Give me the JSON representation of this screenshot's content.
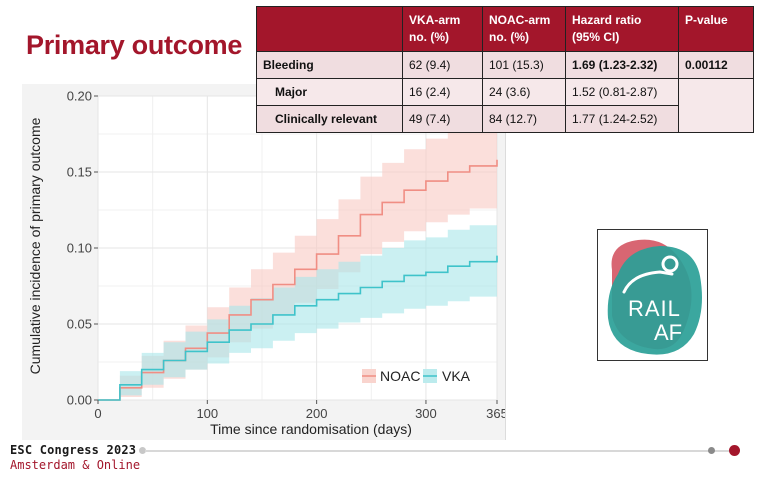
{
  "slide": {
    "title": "Primary outcome",
    "footer": {
      "congress": "ESC Congress 2023",
      "location": "Amsterdam & Online"
    },
    "logo_text": "RAIL AF",
    "colors": {
      "brand": "#a3162b",
      "noac": "#f4a9a0",
      "vka": "#5fd0d6"
    }
  },
  "table": {
    "headers": [
      {
        "line1": "",
        "line2": ""
      },
      {
        "line1": "VKA-arm",
        "line2": "no. (%)"
      },
      {
        "line1": "NOAC-arm",
        "line2": "no. (%)"
      },
      {
        "line1": "Hazard ratio",
        "line2": "(95% CI)"
      },
      {
        "line1": "P-value",
        "line2": ""
      }
    ],
    "rows": [
      {
        "label": "Bleeding",
        "vka": "62 (9.4)",
        "noac": "101 (15.3)",
        "hr": "1.69 (1.23-2.32)",
        "p": "0.00112"
      },
      {
        "label": "Major",
        "vka": "16 (2.4)",
        "noac": "24 (3.6)",
        "hr": "1.52 (0.81-2.87)",
        "p": ""
      },
      {
        "label": "Clinically relevant",
        "vka": "49 (7.4)",
        "noac": "84 (12.7)",
        "hr": "1.77 (1.24-2.52)",
        "p": ""
      }
    ]
  },
  "chart_data": {
    "type": "line",
    "title": "",
    "xlabel": "Time since randomisation (days)",
    "ylabel": "Cumulative incidence of primary outcome",
    "xlim": [
      0,
      365
    ],
    "ylim": [
      0,
      0.2
    ],
    "x_ticks": [
      0,
      100,
      200,
      300,
      365
    ],
    "y_ticks": [
      0.0,
      0.05,
      0.1,
      0.15,
      0.2
    ],
    "y_tick_labels": [
      "0.00",
      "0.05",
      "0.10",
      "0.15",
      "0.20"
    ],
    "grid": true,
    "legend_position": "bottom-right",
    "series": [
      {
        "name": "NOAC",
        "color": "#f4a9a0",
        "x": [
          0,
          20,
          40,
          60,
          80,
          100,
          120,
          140,
          160,
          180,
          200,
          220,
          240,
          260,
          280,
          300,
          320,
          340,
          365
        ],
        "y": [
          0.0,
          0.008,
          0.018,
          0.026,
          0.034,
          0.044,
          0.056,
          0.066,
          0.076,
          0.086,
          0.096,
          0.108,
          0.122,
          0.13,
          0.138,
          0.144,
          0.15,
          0.154,
          0.158
        ],
        "lower": [
          0.0,
          0.002,
          0.008,
          0.014,
          0.02,
          0.028,
          0.038,
          0.047,
          0.056,
          0.064,
          0.073,
          0.084,
          0.096,
          0.104,
          0.111,
          0.117,
          0.122,
          0.126,
          0.13
        ],
        "upper": [
          0.0,
          0.016,
          0.029,
          0.039,
          0.049,
          0.061,
          0.074,
          0.086,
          0.097,
          0.108,
          0.119,
          0.132,
          0.147,
          0.156,
          0.165,
          0.172,
          0.178,
          0.183,
          0.187
        ]
      },
      {
        "name": "VKA",
        "color": "#5fd0d6",
        "x": [
          0,
          20,
          40,
          60,
          80,
          100,
          120,
          140,
          160,
          180,
          200,
          220,
          240,
          260,
          280,
          300,
          320,
          340,
          365
        ],
        "y": [
          0.0,
          0.01,
          0.02,
          0.026,
          0.032,
          0.038,
          0.046,
          0.05,
          0.056,
          0.062,
          0.066,
          0.07,
          0.074,
          0.078,
          0.082,
          0.084,
          0.088,
          0.091,
          0.095
        ],
        "lower": [
          0.0,
          0.003,
          0.01,
          0.015,
          0.02,
          0.024,
          0.031,
          0.034,
          0.039,
          0.044,
          0.047,
          0.051,
          0.054,
          0.057,
          0.06,
          0.062,
          0.065,
          0.068,
          0.071
        ],
        "upper": [
          0.0,
          0.019,
          0.031,
          0.038,
          0.045,
          0.053,
          0.062,
          0.067,
          0.074,
          0.081,
          0.086,
          0.091,
          0.095,
          0.1,
          0.105,
          0.107,
          0.112,
          0.115,
          0.12
        ]
      }
    ]
  }
}
